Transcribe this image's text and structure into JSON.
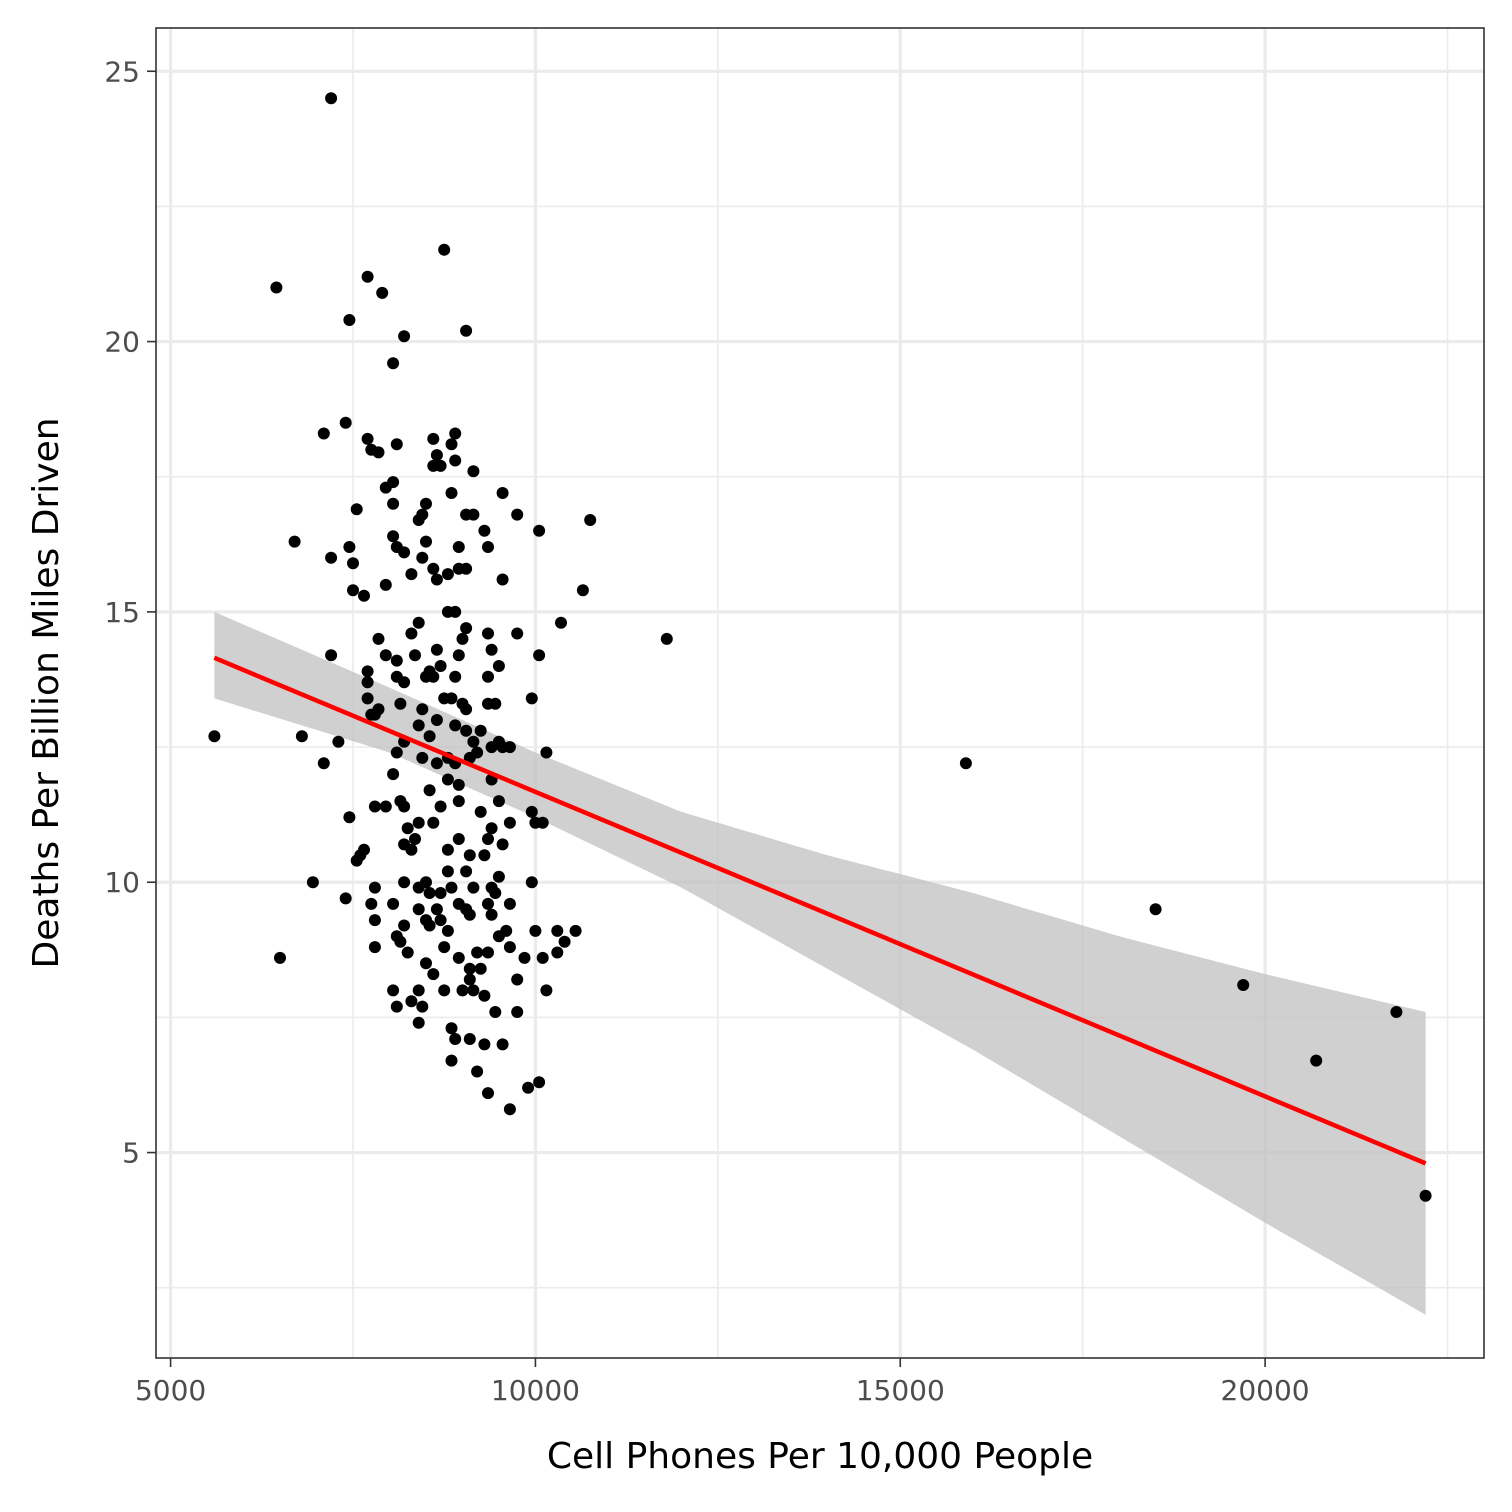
{
  "chart_data": {
    "type": "scatter",
    "title": "",
    "xlabel": "Cell Phones Per 10,000 People",
    "ylabel": "Deaths Per Billion Miles Driven",
    "xlim": [
      4800,
      23000
    ],
    "ylim": [
      1.2,
      25.8
    ],
    "x_ticks": [
      5000,
      10000,
      15000,
      20000
    ],
    "x_tick_labels": [
      "5000",
      "10000",
      "15000",
      "20000"
    ],
    "y_ticks": [
      5,
      10,
      15,
      20,
      25
    ],
    "y_tick_labels": [
      "5",
      "10",
      "15",
      "20",
      "25"
    ],
    "x_minor_ticks": [
      7500,
      12500,
      17500,
      22500
    ],
    "y_minor_ticks": [
      2.5,
      7.5,
      12.5,
      17.5,
      22.5
    ],
    "grid": true,
    "legend": "none",
    "point_color": "#000000",
    "trend_color": "#ff0000",
    "band_color": "#bebebe",
    "points": [
      [
        7200,
        24.5
      ],
      [
        8750,
        21.7
      ],
      [
        6450,
        21.0
      ],
      [
        7700,
        21.2
      ],
      [
        7900,
        20.9
      ],
      [
        7450,
        20.4
      ],
      [
        9050,
        20.2
      ],
      [
        8200,
        20.1
      ],
      [
        8050,
        19.6
      ],
      [
        7100,
        18.3
      ],
      [
        7400,
        18.5
      ],
      [
        7700,
        18.2
      ],
      [
        7750,
        18.0
      ],
      [
        7850,
        17.95
      ],
      [
        8100,
        18.1
      ],
      [
        8600,
        18.2
      ],
      [
        8650,
        17.9
      ],
      [
        8850,
        18.1
      ],
      [
        8900,
        18.3
      ],
      [
        8700,
        17.7
      ],
      [
        8600,
        17.7
      ],
      [
        8900,
        17.8
      ],
      [
        9150,
        17.6
      ],
      [
        7950,
        17.3
      ],
      [
        8050,
        17.4
      ],
      [
        8850,
        17.2
      ],
      [
        7550,
        16.9
      ],
      [
        8050,
        17.0
      ],
      [
        8500,
        17.0
      ],
      [
        8450,
        16.8
      ],
      [
        8400,
        16.7
      ],
      [
        9050,
        16.8
      ],
      [
        9150,
        16.8
      ],
      [
        9300,
        16.5
      ],
      [
        9550,
        17.2
      ],
      [
        9750,
        16.8
      ],
      [
        10050,
        16.5
      ],
      [
        10750,
        16.7
      ],
      [
        6700,
        16.3
      ],
      [
        7450,
        16.2
      ],
      [
        7200,
        16.0
      ],
      [
        7500,
        15.9
      ],
      [
        8050,
        16.4
      ],
      [
        8100,
        16.2
      ],
      [
        8200,
        16.1
      ],
      [
        8450,
        16.0
      ],
      [
        8500,
        16.3
      ],
      [
        8950,
        16.2
      ],
      [
        9350,
        16.2
      ],
      [
        7500,
        15.4
      ],
      [
        7650,
        15.3
      ],
      [
        7950,
        15.5
      ],
      [
        8300,
        15.7
      ],
      [
        8600,
        15.8
      ],
      [
        8650,
        15.6
      ],
      [
        8800,
        15.7
      ],
      [
        8950,
        15.8
      ],
      [
        9050,
        15.8
      ],
      [
        9550,
        15.6
      ],
      [
        10650,
        15.4
      ],
      [
        8400,
        14.8
      ],
      [
        8800,
        15.0
      ],
      [
        8900,
        15.0
      ],
      [
        9050,
        14.7
      ],
      [
        9000,
        14.5
      ],
      [
        9350,
        14.6
      ],
      [
        9750,
        14.6
      ],
      [
        10350,
        14.8
      ],
      [
        11800,
        14.5
      ],
      [
        7200,
        14.2
      ],
      [
        7850,
        14.5
      ],
      [
        7950,
        14.2
      ],
      [
        8100,
        14.1
      ],
      [
        8300,
        14.6
      ],
      [
        8350,
        14.2
      ],
      [
        8550,
        13.9
      ],
      [
        8650,
        14.3
      ],
      [
        8700,
        14.0
      ],
      [
        8950,
        14.2
      ],
      [
        9400,
        14.3
      ],
      [
        9500,
        14.0
      ],
      [
        10050,
        14.2
      ],
      [
        7700,
        13.9
      ],
      [
        7700,
        13.7
      ],
      [
        8100,
        13.8
      ],
      [
        8200,
        13.7
      ],
      [
        8500,
        13.8
      ],
      [
        8600,
        13.8
      ],
      [
        8900,
        13.8
      ],
      [
        9350,
        13.8
      ],
      [
        7700,
        13.4
      ],
      [
        7850,
        13.2
      ],
      [
        8150,
        13.3
      ],
      [
        8450,
        13.2
      ],
      [
        8750,
        13.4
      ],
      [
        8850,
        13.4
      ],
      [
        9000,
        13.3
      ],
      [
        9050,
        13.2
      ],
      [
        9350,
        13.3
      ],
      [
        9450,
        13.3
      ],
      [
        9950,
        13.4
      ],
      [
        7750,
        13.1
      ],
      [
        7800,
        13.1
      ],
      [
        8400,
        12.9
      ],
      [
        8650,
        13.0
      ],
      [
        8900,
        12.9
      ],
      [
        9050,
        12.8
      ],
      [
        9150,
        12.6
      ],
      [
        9250,
        12.8
      ],
      [
        9500,
        12.6
      ],
      [
        9650,
        12.5
      ],
      [
        5600,
        12.7
      ],
      [
        6800,
        12.7
      ],
      [
        7300,
        12.6
      ],
      [
        8200,
        12.6
      ],
      [
        8550,
        12.7
      ],
      [
        8100,
        12.4
      ],
      [
        8650,
        12.2
      ],
      [
        8900,
        12.2
      ],
      [
        9100,
        12.3
      ],
      [
        9400,
        12.5
      ],
      [
        10150,
        12.4
      ],
      [
        7100,
        12.2
      ],
      [
        8450,
        12.3
      ],
      [
        8800,
        12.3
      ],
      [
        9200,
        12.4
      ],
      [
        9550,
        12.5
      ],
      [
        15900,
        12.2
      ],
      [
        8050,
        12.0
      ],
      [
        8800,
        11.9
      ],
      [
        8950,
        11.8
      ],
      [
        9400,
        11.9
      ],
      [
        8150,
        11.5
      ],
      [
        8550,
        11.7
      ],
      [
        8950,
        11.5
      ],
      [
        9500,
        11.5
      ],
      [
        7800,
        11.4
      ],
      [
        7950,
        11.4
      ],
      [
        8200,
        11.4
      ],
      [
        8700,
        11.4
      ],
      [
        9250,
        11.3
      ],
      [
        9950,
        11.3
      ],
      [
        7450,
        11.2
      ],
      [
        8400,
        11.1
      ],
      [
        8600,
        11.1
      ],
      [
        9400,
        11.0
      ],
      [
        9650,
        11.1
      ],
      [
        10100,
        11.1
      ],
      [
        8250,
        11.0
      ],
      [
        8350,
        10.8
      ],
      [
        8950,
        10.8
      ],
      [
        9350,
        10.8
      ],
      [
        9550,
        10.7
      ],
      [
        10000,
        11.1
      ],
      [
        7650,
        10.6
      ],
      [
        7600,
        10.5
      ],
      [
        8200,
        10.7
      ],
      [
        8300,
        10.6
      ],
      [
        8800,
        10.6
      ],
      [
        9100,
        10.5
      ],
      [
        9300,
        10.5
      ],
      [
        7550,
        10.4
      ],
      [
        8800,
        10.2
      ],
      [
        9050,
        10.2
      ],
      [
        9500,
        10.1
      ],
      [
        6950,
        10.0
      ],
      [
        7800,
        9.9
      ],
      [
        8200,
        10.0
      ],
      [
        8400,
        9.9
      ],
      [
        8500,
        10.0
      ],
      [
        8550,
        9.8
      ],
      [
        8700,
        9.8
      ],
      [
        8850,
        9.9
      ],
      [
        9150,
        9.9
      ],
      [
        9400,
        9.9
      ],
      [
        9450,
        9.8
      ],
      [
        9950,
        10.0
      ],
      [
        7400,
        9.7
      ],
      [
        7750,
        9.6
      ],
      [
        8050,
        9.6
      ],
      [
        8400,
        9.5
      ],
      [
        8650,
        9.5
      ],
      [
        8950,
        9.6
      ],
      [
        9050,
        9.5
      ],
      [
        9350,
        9.6
      ],
      [
        9650,
        9.6
      ],
      [
        7800,
        9.3
      ],
      [
        8200,
        9.2
      ],
      [
        8500,
        9.3
      ],
      [
        8550,
        9.2
      ],
      [
        8700,
        9.3
      ],
      [
        9100,
        9.4
      ],
      [
        9400,
        9.4
      ],
      [
        8100,
        9.0
      ],
      [
        8150,
        8.9
      ],
      [
        8800,
        9.1
      ],
      [
        9500,
        9.0
      ],
      [
        9600,
        9.1
      ],
      [
        10000,
        9.1
      ],
      [
        10300,
        9.1
      ],
      [
        10550,
        9.1
      ],
      [
        7800,
        8.8
      ],
      [
        8250,
        8.7
      ],
      [
        8750,
        8.8
      ],
      [
        9200,
        8.7
      ],
      [
        9350,
        8.7
      ],
      [
        9650,
        8.8
      ],
      [
        10100,
        8.6
      ],
      [
        10300,
        8.7
      ],
      [
        10400,
        8.9
      ],
      [
        6500,
        8.6
      ],
      [
        8500,
        8.5
      ],
      [
        8950,
        8.6
      ],
      [
        9100,
        8.4
      ],
      [
        9250,
        8.4
      ],
      [
        9850,
        8.6
      ],
      [
        18500,
        9.5
      ],
      [
        8600,
        8.3
      ],
      [
        9100,
        8.2
      ],
      [
        9750,
        8.2
      ],
      [
        8050,
        8.0
      ],
      [
        8400,
        8.0
      ],
      [
        8750,
        8.0
      ],
      [
        9000,
        8.0
      ],
      [
        9150,
        8.0
      ],
      [
        9300,
        7.9
      ],
      [
        10150,
        8.0
      ],
      [
        8100,
        7.7
      ],
      [
        8300,
        7.8
      ],
      [
        8450,
        7.7
      ],
      [
        9450,
        7.6
      ],
      [
        9750,
        7.6
      ],
      [
        19700,
        8.1
      ],
      [
        8400,
        7.4
      ],
      [
        8850,
        7.3
      ],
      [
        8900,
        7.1
      ],
      [
        9100,
        7.1
      ],
      [
        9300,
        7.0
      ],
      [
        9550,
        7.0
      ],
      [
        21800,
        7.6
      ],
      [
        8850,
        6.7
      ],
      [
        9200,
        6.5
      ],
      [
        20700,
        6.7
      ],
      [
        9350,
        6.1
      ],
      [
        9900,
        6.2
      ],
      [
        10050,
        6.3
      ],
      [
        9650,
        5.8
      ],
      [
        22200,
        4.2
      ]
    ],
    "trend_line": {
      "x": [
        5600,
        22200
      ],
      "y": [
        14.15,
        4.8
      ]
    },
    "confidence_band": {
      "x": [
        5600,
        8000,
        10000,
        12000,
        14000,
        16000,
        18000,
        20000,
        22200
      ],
      "upper": [
        15.0,
        13.6,
        12.4,
        11.3,
        10.5,
        9.8,
        9.0,
        8.3,
        7.6
      ],
      "lower": [
        13.4,
        12.4,
        11.2,
        9.9,
        8.4,
        6.9,
        5.3,
        3.7,
        2.0
      ]
    }
  }
}
